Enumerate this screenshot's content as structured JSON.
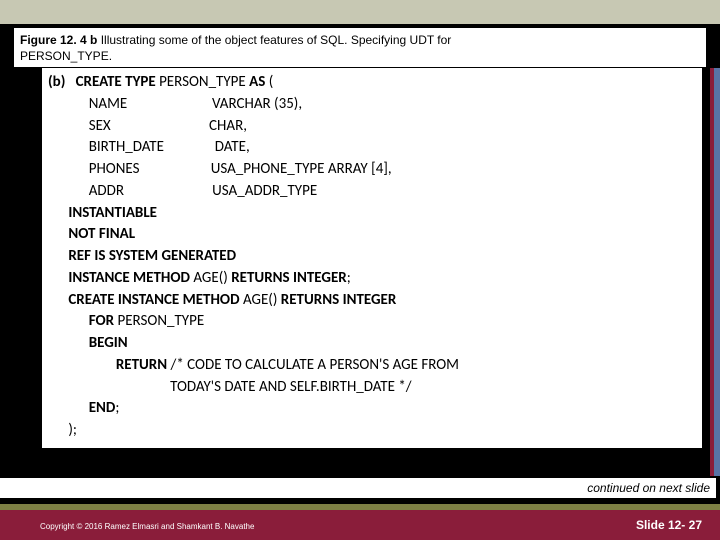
{
  "caption": {
    "figure_num": "Figure 12. 4 b",
    "title_rest": "  Illustrating some of the object features of SQL. Specifying UDT for",
    "line2": "PERSON_TYPE."
  },
  "code": {
    "lines": [
      {
        "pre": "",
        "bold": "(b)   CREATE TYPE ",
        "mid": "PERSON_TYPE ",
        "bold2": "AS ",
        "rest": "("
      },
      {
        "pre": "            ",
        "bold": "",
        "mid": "NAME",
        "bold2": "",
        "rest": "                         VARCHAR (35),"
      },
      {
        "pre": "            ",
        "bold": "",
        "mid": "SEX",
        "bold2": "",
        "rest": "                             CHAR,"
      },
      {
        "pre": "            ",
        "bold": "",
        "mid": "BIRTH_DATE",
        "bold2": "",
        "rest": "               DATE,"
      },
      {
        "pre": "            ",
        "bold": "",
        "mid": "PHONES",
        "bold2": "",
        "rest": "                     USA_PHONE_TYPE ARRAY [4],"
      },
      {
        "pre": "            ",
        "bold": "",
        "mid": "ADDR",
        "bold2": "",
        "rest": "                          USA_ADDR_TYPE"
      },
      {
        "pre": "      ",
        "bold": "INSTANTIABLE",
        "mid": "",
        "bold2": "",
        "rest": ""
      },
      {
        "pre": "      ",
        "bold": "NOT FINAL",
        "mid": "",
        "bold2": "",
        "rest": ""
      },
      {
        "pre": "      ",
        "bold": "REF IS SYSTEM GENERATED",
        "mid": "",
        "bold2": "",
        "rest": ""
      },
      {
        "pre": "      ",
        "bold": "INSTANCE METHOD ",
        "mid": "AGE() ",
        "bold2": "RETURNS INTEGER",
        "rest": ";"
      },
      {
        "pre": "      ",
        "bold": "CREATE INSTANCE METHOD ",
        "mid": "AGE() ",
        "bold2": "RETURNS INTEGER",
        "rest": ""
      },
      {
        "pre": "            ",
        "bold": "FOR ",
        "mid": "PERSON_TYPE",
        "bold2": "",
        "rest": ""
      },
      {
        "pre": "            ",
        "bold": "BEGIN",
        "mid": "",
        "bold2": "",
        "rest": ""
      },
      {
        "pre": "                    ",
        "bold": "RETURN ",
        "mid": "/* CODE TO CALCULATE A PERSON'S AGE FROM",
        "bold2": "",
        "rest": ""
      },
      {
        "pre": "                                    ",
        "bold": "",
        "mid": "TODAY'S DATE AND SELF.BIRTH_DATE */",
        "bold2": "",
        "rest": ""
      },
      {
        "pre": "            ",
        "bold": "END",
        "mid": ";",
        "bold2": "",
        "rest": ""
      },
      {
        "pre": "      ",
        "bold": "",
        "mid": ");",
        "bold2": "",
        "rest": ""
      }
    ]
  },
  "continued_text": "continued on next slide",
  "copyright": "Copyright © 2016 Ramez Elmasri and Shamkant B. Navathe",
  "slide_number": "Slide 12- 27",
  "colors": {
    "top_band": "#c7c8b3",
    "bottom_bar": "#8a1d3a",
    "olive_bar": "#7d8044",
    "stripe_blue": "#5874a6"
  }
}
